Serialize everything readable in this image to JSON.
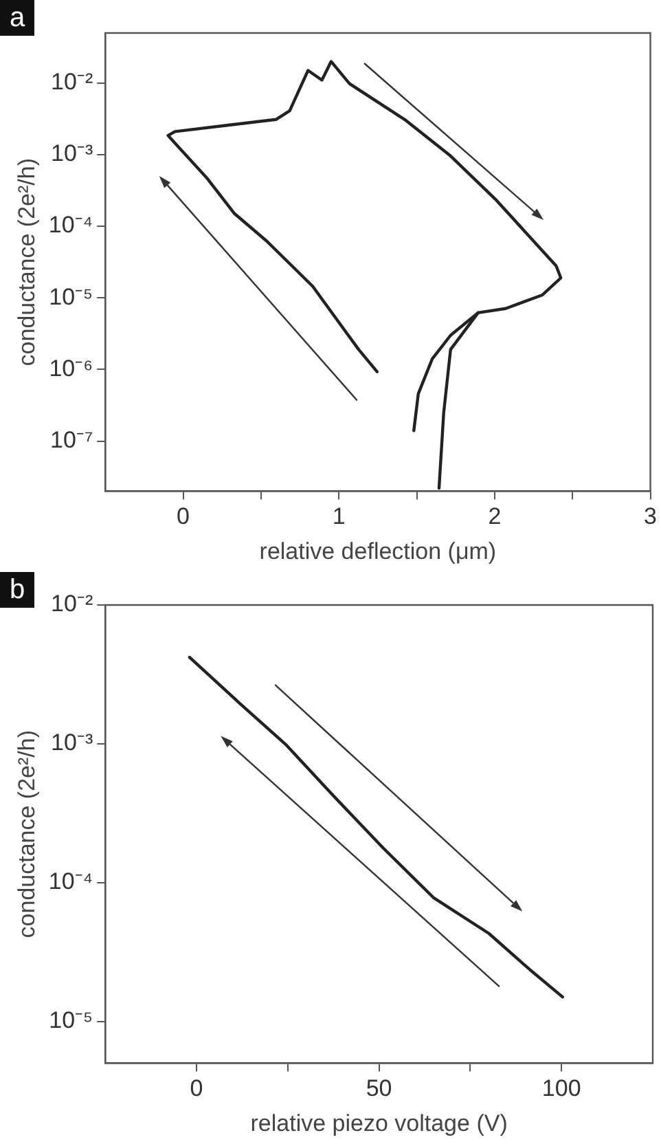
{
  "chart_data": [
    {
      "type": "line",
      "title": "a",
      "xlabel": "relative deflection (μm)",
      "ylabel": "conductance (2e²/h)",
      "log": "y",
      "marker": "none",
      "line_style": "solid",
      "grid": false,
      "legend": false,
      "xlim": [
        -0.5,
        3
      ],
      "xticks": [
        0,
        {
          "value": 0.5,
          "label": null
        },
        1,
        {
          "value": 1.5,
          "label": null
        },
        2,
        {
          "value": 2.5,
          "label": null
        },
        3
      ],
      "ylim": [
        2e-08,
        0.05
      ],
      "yticks": [
        {
          "value": 1e-07,
          "label": "10⁻⁷"
        },
        {
          "value": 1e-06,
          "label": "10⁻⁶"
        },
        {
          "value": 1e-05,
          "label": "10⁻⁵"
        },
        {
          "value": 0.0001,
          "label": "10⁻⁴"
        },
        {
          "value": 0.001,
          "label": "10⁻³"
        },
        {
          "value": 0.01,
          "label": "10⁻²"
        }
      ],
      "series": [
        {
          "color": "#222222",
          "x": [
            1.245,
            1.127,
            0.832,
            0.537,
            0.33,
            0.153,
            -0.097,
            -0.053,
            0.301,
            0.596,
            0.684,
            0.802,
            0.891,
            0.95,
            1.068,
            1.422,
            1.717,
            2.012,
            2.395,
            2.425,
            2.307,
            2.071,
            1.894,
            1.717,
            1.599,
            1.51,
            1.481
          ],
          "values": [
            9.3e-07,
            1.9e-06,
            1.45e-05,
            6.2e-05,
            0.00015,
            0.00047,
            0.00185,
            0.0021,
            0.0026,
            0.0031,
            0.0041,
            0.015,
            0.011,
            0.02,
            0.0098,
            0.0031,
            0.00096,
            0.00023,
            2.8e-05,
            1.9e-05,
            1.1e-05,
            7.1e-06,
            6.2e-06,
            3e-06,
            1.4e-06,
            4.6e-07,
            1.4e-07
          ]
        },
        {
          "color": "#222222",
          "x": [
            1.894,
            1.717,
            1.673,
            1.643
          ],
          "values": [
            6.2e-06,
            1.9e-06,
            2.5e-07,
            2.2e-08
          ]
        }
      ]
    },
    {
      "type": "line",
      "title": "b",
      "xlabel": "relative piezo voltage (V)",
      "ylabel": "conductance (2e²/h)",
      "log": "y",
      "marker": "none",
      "line_style": "solid",
      "grid": false,
      "legend": false,
      "xlim": [
        -25,
        125
      ],
      "xticks": [
        0,
        {
          "value": 25,
          "label": null
        },
        50,
        {
          "value": 75,
          "label": null
        },
        100
      ],
      "ylim": [
        5e-06,
        0.01
      ],
      "yticks": [
        {
          "value": 1e-05,
          "label": "10⁻⁵"
        },
        {
          "value": 0.0001,
          "label": "10⁻⁴"
        },
        {
          "value": 0.001,
          "label": "10⁻³"
        },
        {
          "value": 0.01,
          "label": "10⁻²"
        }
      ],
      "series": [
        {
          "color": "#222222",
          "x": [
            -1.9,
            12,
            24.6,
            37.2,
            51.1,
            64.9,
            80.1,
            91.4,
            100.3
          ],
          "values": [
            0.0042,
            0.00194,
            0.00098,
            0.00043,
            0.000178,
            7.8e-05,
            4.3e-05,
            2.35e-05,
            1.5e-05
          ]
        }
      ]
    }
  ]
}
